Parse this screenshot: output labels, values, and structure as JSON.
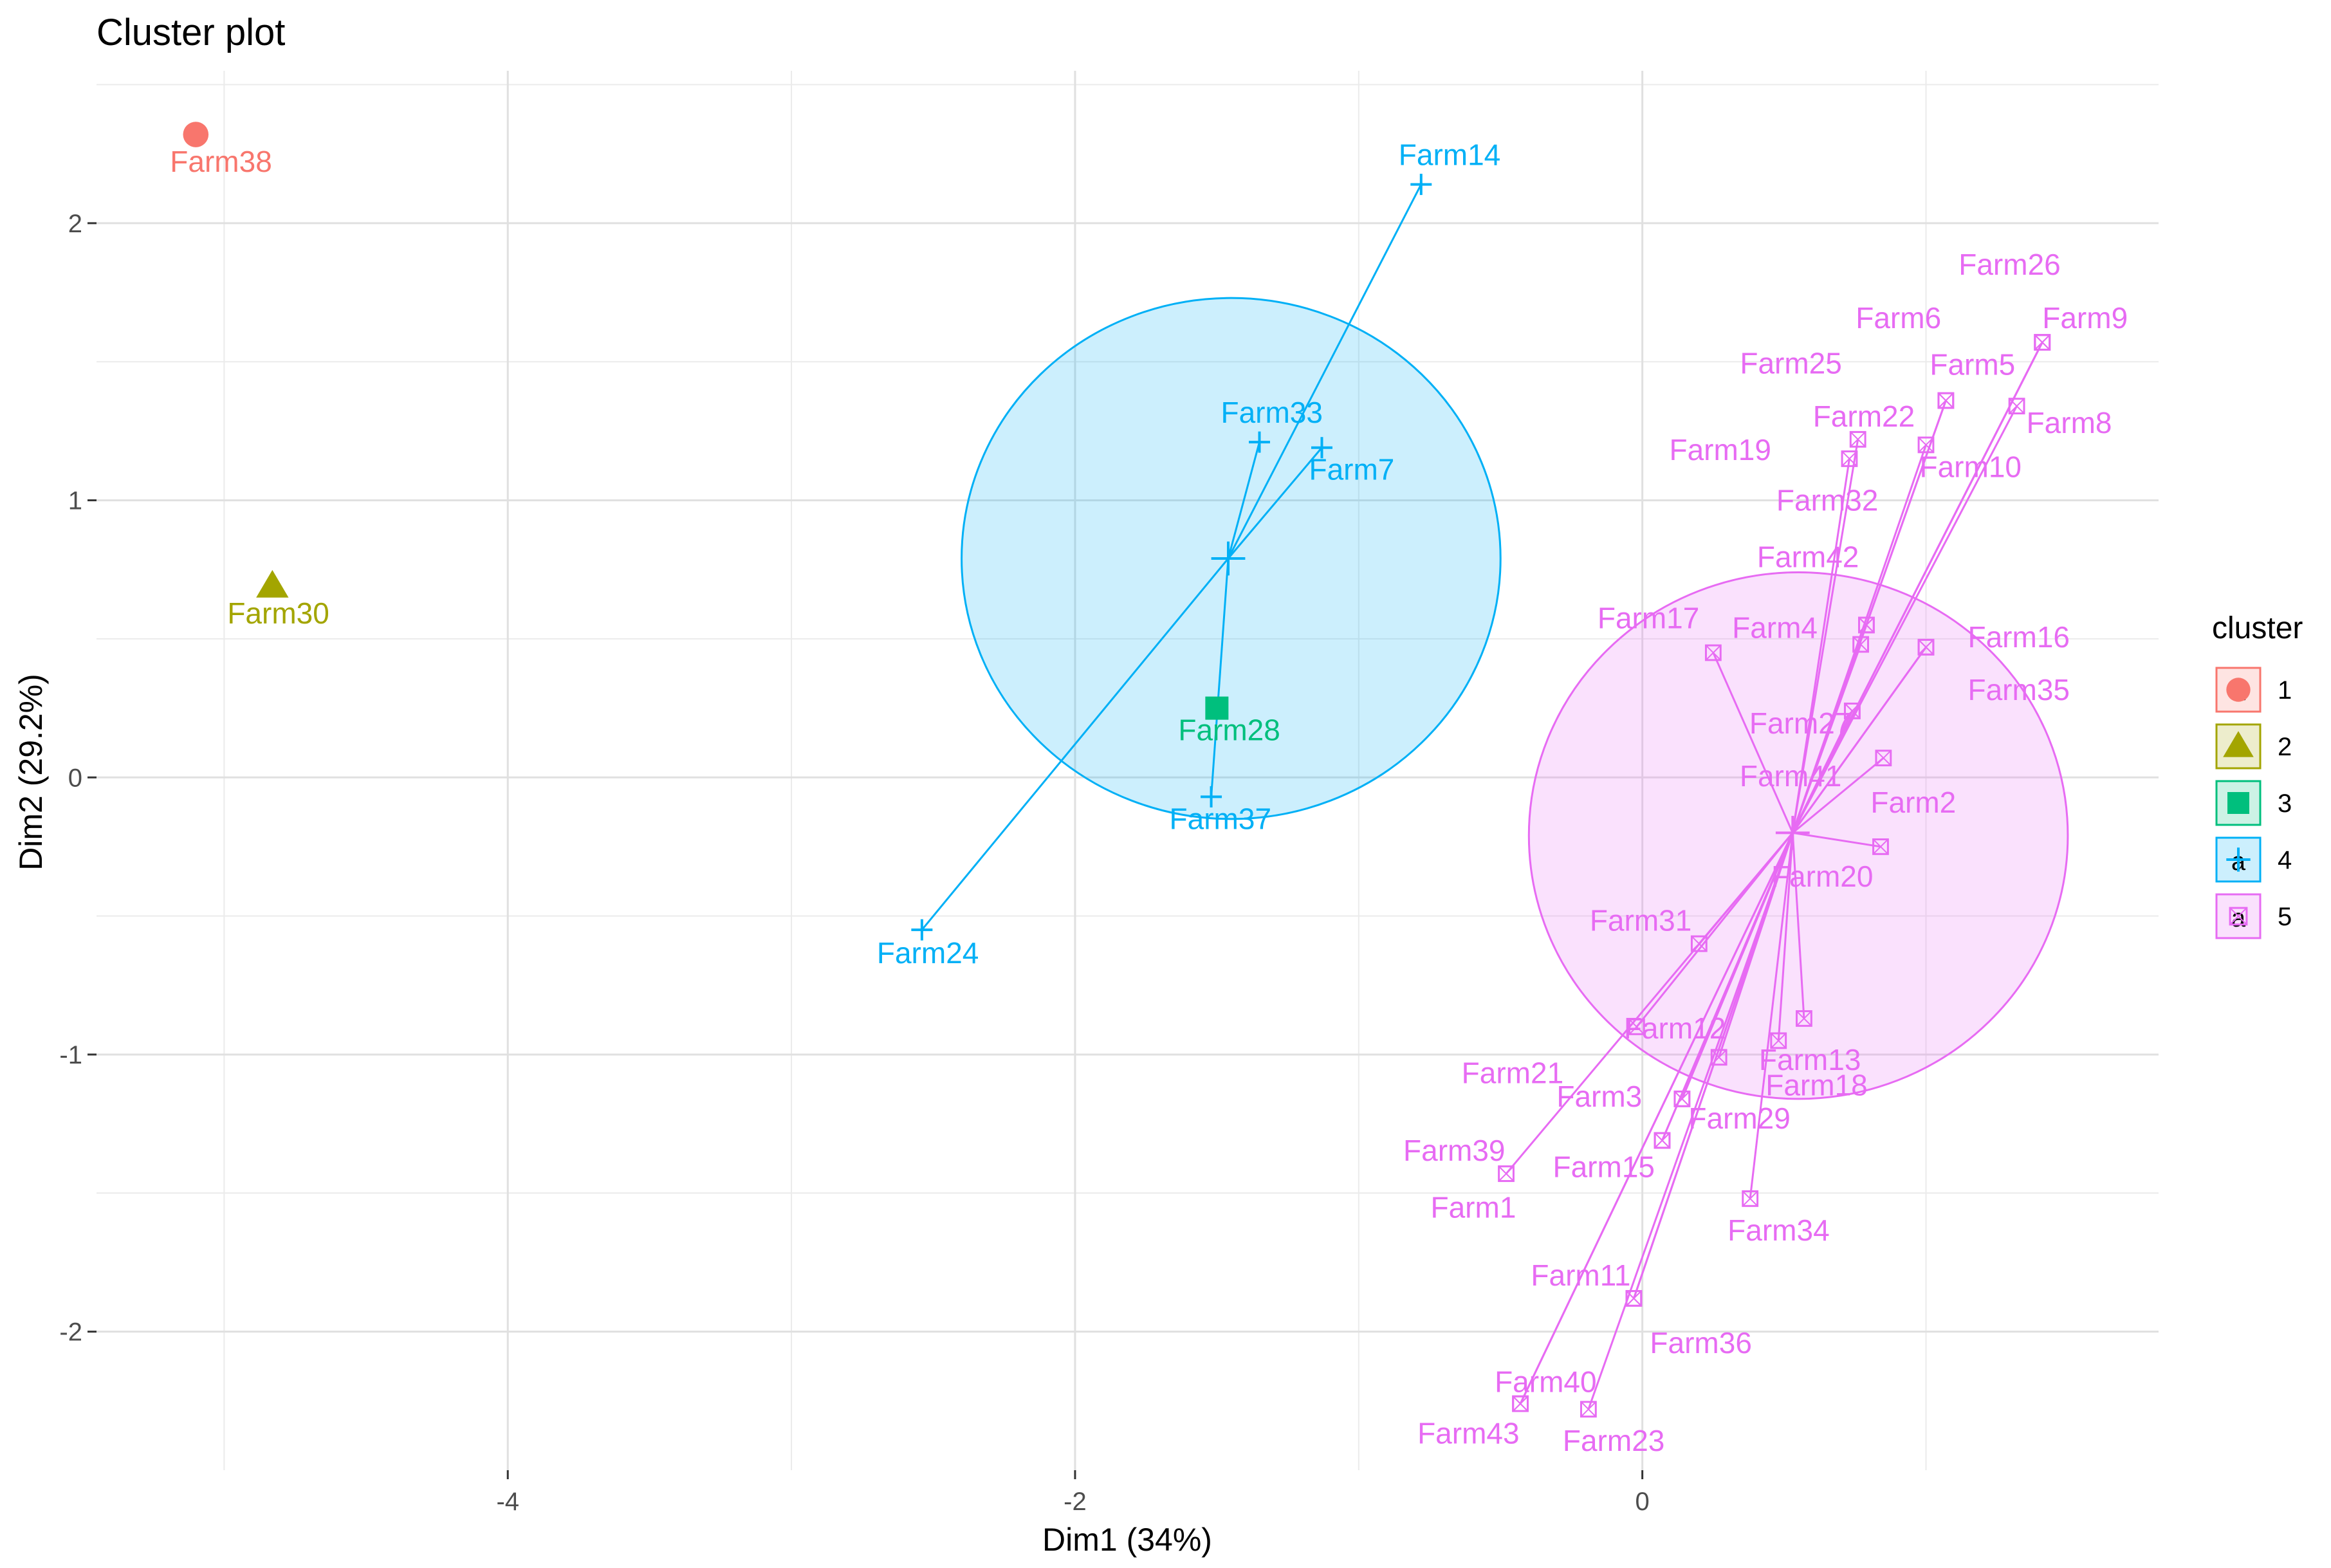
{
  "chart_data": {
    "type": "scatter",
    "title": "Cluster plot",
    "xlabel": "Dim1 (34%)",
    "ylabel": "Dim2 (29.2%)",
    "xlim": [
      -5.45,
      1.82
    ],
    "ylim": [
      -2.5,
      2.55
    ],
    "x_ticks": [
      -4,
      -2,
      0
    ],
    "x_tick_labels": [
      "-4",
      "-2",
      "0"
    ],
    "y_ticks": [
      -2,
      -1,
      0,
      1,
      2
    ],
    "y_tick_labels": [
      "-2",
      "-1",
      "0",
      "1",
      "2"
    ],
    "grid": true,
    "legend": {
      "title": "cluster",
      "position": "right",
      "glyph": "a"
    },
    "clusters": [
      {
        "name": "1",
        "color": "#F8766D",
        "shape": "circle"
      },
      {
        "name": "2",
        "color": "#A3A500",
        "shape": "triangle"
      },
      {
        "name": "3",
        "color": "#00BF7D",
        "shape": "square"
      },
      {
        "name": "4",
        "color": "#00B0F6",
        "shape": "plus"
      },
      {
        "name": "5",
        "color": "#E76BF3",
        "shape": "boxed-x"
      }
    ],
    "hulls": [
      {
        "cluster": "4",
        "center": [
          -1.45,
          0.79
        ],
        "radius_x": 0.95,
        "radius_y": 0.94
      },
      {
        "cluster": "5",
        "center": [
          0.55,
          -0.21
        ],
        "radius_x": 0.95,
        "radius_y": 0.95
      }
    ],
    "centroids": [
      {
        "cluster": "4",
        "x": -1.46,
        "y": 0.79
      },
      {
        "cluster": "5",
        "x": 0.53,
        "y": -0.2
      }
    ],
    "points": [
      {
        "label": "Farm38",
        "cluster": "1",
        "x": -5.1,
        "y": 2.32
      },
      {
        "label": "Farm30",
        "cluster": "2",
        "x": -4.83,
        "y": 0.69
      },
      {
        "label": "Farm28",
        "cluster": "3",
        "x": -1.5,
        "y": 0.25
      },
      {
        "label": "Farm14",
        "cluster": "4",
        "x": -0.78,
        "y": 2.14
      },
      {
        "label": "Farm33",
        "cluster": "4",
        "x": -1.35,
        "y": 1.21
      },
      {
        "label": "Farm7",
        "cluster": "4",
        "x": -1.13,
        "y": 1.19
      },
      {
        "label": "Farm37",
        "cluster": "4",
        "x": -1.52,
        "y": -0.07
      },
      {
        "label": "Farm24",
        "cluster": "4",
        "x": -2.54,
        "y": -0.55
      },
      {
        "label": "Farm26",
        "cluster": "5",
        "x": 1.41,
        "y": 1.57
      },
      {
        "label": "Farm6",
        "cluster": "5",
        "x": 1.41,
        "y": 1.57
      },
      {
        "label": "Farm9",
        "cluster": "5",
        "x": 1.41,
        "y": 1.57
      },
      {
        "label": "Farm25",
        "cluster": "5",
        "x": 1.07,
        "y": 1.36
      },
      {
        "label": "Farm5",
        "cluster": "5",
        "x": 1.07,
        "y": 1.36
      },
      {
        "label": "Farm8",
        "cluster": "5",
        "x": 1.32,
        "y": 1.34
      },
      {
        "label": "Farm22",
        "cluster": "5",
        "x": 0.76,
        "y": 1.22
      },
      {
        "label": "Farm19",
        "cluster": "5",
        "x": 0.73,
        "y": 1.15
      },
      {
        "label": "Farm10",
        "cluster": "5",
        "x": 1.0,
        "y": 1.2
      },
      {
        "label": "Farm32",
        "cluster": "5",
        "x": 0.79,
        "y": 0.55
      },
      {
        "label": "Farm42",
        "cluster": "5",
        "x": 0.79,
        "y": 0.55
      },
      {
        "label": "Farm16",
        "cluster": "5",
        "x": 1.0,
        "y": 0.47
      },
      {
        "label": "Farm17",
        "cluster": "5",
        "x": 0.25,
        "y": 0.45
      },
      {
        "label": "Farm4",
        "cluster": "5",
        "x": 0.77,
        "y": 0.48
      },
      {
        "label": "Farm35",
        "cluster": "5",
        "x": 1.0,
        "y": 0.47
      },
      {
        "label": "Farm27",
        "cluster": "5",
        "x": 0.74,
        "y": 0.24
      },
      {
        "label": "Farm41",
        "cluster": "5",
        "x": 0.74,
        "y": 0.24
      },
      {
        "label": "Farm2",
        "cluster": "5",
        "x": 0.85,
        "y": 0.07
      },
      {
        "label": "Farm20",
        "cluster": "5",
        "x": 0.84,
        "y": -0.25
      },
      {
        "label": "Farm31",
        "cluster": "5",
        "x": 0.2,
        "y": -0.6
      },
      {
        "label": "Farm13",
        "cluster": "5",
        "x": 0.57,
        "y": -0.87
      },
      {
        "label": "Farm12",
        "cluster": "5",
        "x": -0.02,
        "y": -0.9
      },
      {
        "label": "Farm18",
        "cluster": "5",
        "x": 0.48,
        "y": -0.95
      },
      {
        "label": "Farm21",
        "cluster": "5",
        "x": 0.27,
        "y": -1.01
      },
      {
        "label": "Farm3",
        "cluster": "5",
        "x": 0.14,
        "y": -1.16
      },
      {
        "label": "Farm29",
        "cluster": "5",
        "x": 0.14,
        "y": -1.16
      },
      {
        "label": "Farm39",
        "cluster": "5",
        "x": -0.48,
        "y": -1.43
      },
      {
        "label": "Farm15",
        "cluster": "5",
        "x": 0.07,
        "y": -1.31
      },
      {
        "label": "Farm1",
        "cluster": "5",
        "x": 0.07,
        "y": -1.31
      },
      {
        "label": "Farm34",
        "cluster": "5",
        "x": 0.38,
        "y": -1.52
      },
      {
        "label": "Farm11",
        "cluster": "5",
        "x": -0.03,
        "y": -1.88
      },
      {
        "label": "Farm36",
        "cluster": "5",
        "x": -0.03,
        "y": -1.88
      },
      {
        "label": "Farm40",
        "cluster": "5",
        "x": -0.43,
        "y": -2.26
      },
      {
        "label": "Farm43",
        "cluster": "5",
        "x": -0.43,
        "y": -2.26
      },
      {
        "label": "Farm23",
        "cluster": "5",
        "x": -0.19,
        "y": -2.28
      }
    ]
  }
}
